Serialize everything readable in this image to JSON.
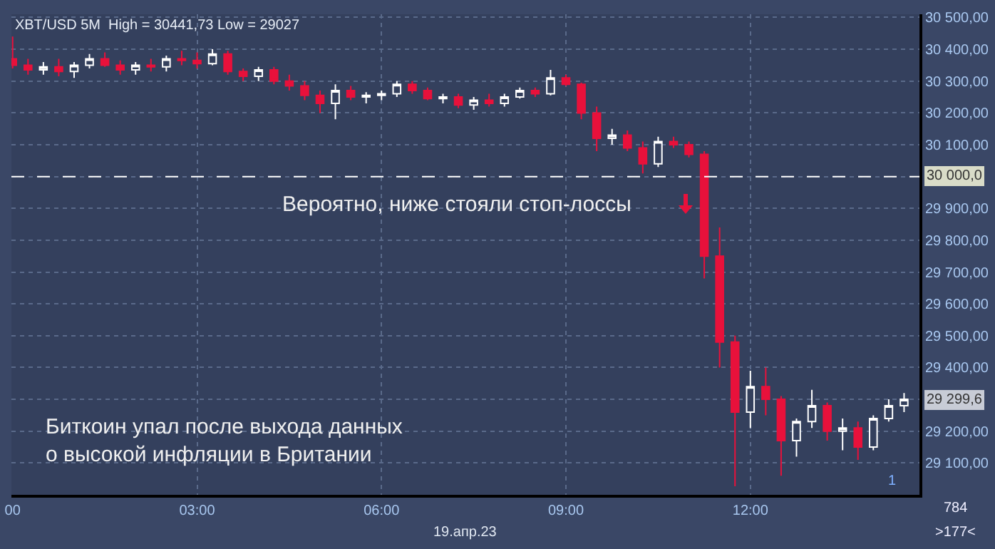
{
  "chart_data": {
    "type": "candlestick",
    "title": "XBT/USD 5M  High = 30441,73 Low = 29027",
    "grid": true,
    "colors": [
      "#e8113b",
      "#e8113b",
      "#ffffff",
      "#e8113b",
      "#ffffff",
      "#ffffff",
      "#e8113b",
      "#e8113b",
      "#ffffff",
      "#e8113b",
      "#ffffff",
      "#e8113b",
      "#e8113b",
      "#ffffff",
      "#e8113b",
      "#e8113b",
      "#ffffff",
      "#e8113b",
      "#e8113b",
      "#e8113b",
      "#e8113b",
      "#ffffff",
      "#e8113b",
      "#ffffff",
      "#ffffff",
      "#ffffff",
      "#e8113b",
      "#e8113b",
      "#ffffff",
      "#e8113b",
      "#ffffff",
      "#e8113b",
      "#ffffff",
      "#ffffff",
      "#e8113b",
      "#ffffff",
      "#e8113b",
      "#e8113b",
      "#e8113b",
      "#ffffff",
      "#e8113b",
      "#e8113b",
      "#ffffff",
      "#e8113b",
      "#e8113b",
      "#e8113b",
      "#e8113b",
      "#e8113b",
      "#ffffff",
      "#e8113b",
      "#e8113b",
      "#ffffff",
      "#ffffff",
      "#e8113b",
      "#ffffff",
      "#e8113b",
      "#ffffff",
      "#ffffff",
      "#ffffff"
    ],
    "x": [
      0,
      0.25,
      0.5,
      0.75,
      1,
      1.25,
      1.5,
      1.75,
      2,
      2.25,
      2.5,
      2.75,
      3,
      3.25,
      3.5,
      3.75,
      4,
      4.25,
      4.5,
      4.75,
      5,
      5.25,
      5.5,
      5.75,
      6,
      6.25,
      6.5,
      6.75,
      7,
      7.25,
      7.5,
      7.75,
      8,
      8.25,
      8.5,
      8.75,
      9,
      9.25,
      9.5,
      9.75,
      10,
      10.25,
      10.5,
      10.75,
      11,
      11.25,
      11.5,
      11.75,
      12,
      12.25,
      12.5,
      12.75,
      13,
      13.25,
      13.5,
      13.75,
      14,
      14.25,
      14.5
    ],
    "ohlc": [
      [
        30370,
        30440,
        30340,
        30350
      ],
      [
        30350,
        30370,
        30320,
        30335
      ],
      [
        30335,
        30360,
        30320,
        30345
      ],
      [
        30345,
        30370,
        30315,
        30330
      ],
      [
        30330,
        30360,
        30310,
        30350
      ],
      [
        30350,
        30385,
        30340,
        30370
      ],
      [
        30370,
        30390,
        30345,
        30350
      ],
      [
        30350,
        30365,
        30320,
        30335
      ],
      [
        30335,
        30360,
        30320,
        30350
      ],
      [
        30350,
        30370,
        30330,
        30345
      ],
      [
        30345,
        30380,
        30330,
        30370
      ],
      [
        30370,
        30395,
        30350,
        30365
      ],
      [
        30365,
        30390,
        30340,
        30355
      ],
      [
        30355,
        30400,
        30350,
        30385
      ],
      [
        30385,
        30395,
        30320,
        30330
      ],
      [
        30330,
        30340,
        30300,
        30315
      ],
      [
        30315,
        30345,
        30300,
        30335
      ],
      [
        30335,
        30345,
        30290,
        30300
      ],
      [
        30300,
        30320,
        30270,
        30285
      ],
      [
        30285,
        30300,
        30240,
        30255
      ],
      [
        30255,
        30270,
        30200,
        30230
      ],
      [
        30230,
        30290,
        30180,
        30270
      ],
      [
        30270,
        30285,
        30240,
        30250
      ],
      [
        30250,
        30265,
        30230,
        30255
      ],
      [
        30255,
        30270,
        30240,
        30260
      ],
      [
        30260,
        30300,
        30250,
        30290
      ],
      [
        30290,
        30300,
        30260,
        30270
      ],
      [
        30270,
        30280,
        30240,
        30245
      ],
      [
        30245,
        30260,
        30230,
        30250
      ],
      [
        30250,
        30260,
        30215,
        30225
      ],
      [
        30225,
        30250,
        30210,
        30240
      ],
      [
        30240,
        30260,
        30220,
        30230
      ],
      [
        30230,
        30260,
        30220,
        30250
      ],
      [
        30250,
        30280,
        30245,
        30270
      ],
      [
        30270,
        30280,
        30250,
        30260
      ],
      [
        30260,
        30335,
        30255,
        30310
      ],
      [
        30310,
        30320,
        30285,
        30290
      ],
      [
        30290,
        30295,
        30180,
        30200
      ],
      [
        30200,
        30220,
        30080,
        30120
      ],
      [
        30120,
        30150,
        30100,
        30130
      ],
      [
        30130,
        30145,
        30080,
        30090
      ],
      [
        30090,
        30110,
        30010,
        30040
      ],
      [
        30040,
        30125,
        30030,
        30110
      ],
      [
        30110,
        30125,
        30090,
        30100
      ],
      [
        30100,
        30110,
        30060,
        30070
      ],
      [
        30070,
        30080,
        29680,
        29750
      ],
      [
        29750,
        29840,
        29400,
        29480
      ],
      [
        29480,
        29500,
        29027,
        29260
      ],
      [
        29260,
        29390,
        29210,
        29340
      ],
      [
        29340,
        29400,
        29250,
        29300
      ],
      [
        29300,
        29310,
        29060,
        29170
      ],
      [
        29170,
        29240,
        29120,
        29230
      ],
      [
        29230,
        29330,
        29210,
        29280
      ],
      [
        29280,
        29290,
        29170,
        29200
      ],
      [
        29200,
        29240,
        29140,
        29210
      ],
      [
        29210,
        29230,
        29110,
        29150
      ],
      [
        29150,
        29250,
        29140,
        29240
      ],
      [
        29240,
        29300,
        29230,
        29280
      ],
      [
        29280,
        29320,
        29260,
        29300
      ]
    ],
    "xlim": [
      -0.02,
      14.75
    ],
    "xticks": [
      {
        "value": 0,
        "label": "00"
      },
      {
        "value": 3,
        "label": "03:00"
      },
      {
        "value": 6,
        "label": "06:00"
      },
      {
        "value": 9,
        "label": "09:00"
      },
      {
        "value": 12,
        "label": "12:00"
      }
    ],
    "ylim": [
      29000,
      30510
    ],
    "yticks": [
      {
        "value": 29100,
        "label": "29 100,00"
      },
      {
        "value": 29200,
        "label": "29 200,00"
      },
      {
        "value": 29300,
        "label": null
      },
      {
        "value": 29400,
        "label": "29 400,00"
      },
      {
        "value": 29500,
        "label": "29 500,00"
      },
      {
        "value": 29600,
        "label": "29 600,00"
      },
      {
        "value": 29700,
        "label": "29 700,00"
      },
      {
        "value": 29800,
        "label": "29 800,00"
      },
      {
        "value": 29900,
        "label": "29 900,00"
      },
      {
        "value": 30000,
        "label": null
      },
      {
        "value": 30100,
        "label": "30 100,00"
      },
      {
        "value": 30200,
        "label": "30 200,00"
      },
      {
        "value": 30300,
        "label": "30 300,00"
      },
      {
        "value": 30400,
        "label": "30 400,00"
      },
      {
        "value": 30500,
        "label": "30 500,00"
      }
    ],
    "ref_lines": [
      {
        "axis": "y",
        "value": 30000,
        "label": "30 000,0",
        "color": "#ffffff",
        "line_style": "dashed"
      }
    ],
    "annotations": [
      "Вероятно, ниже стояли стоп-лоссы",
      "Биткоин упал после выхода данных\nо высокой инфляции в Британии",
      "19.апр.23",
      "1",
      "784",
      ">177<",
      "29 299,6"
    ]
  }
}
